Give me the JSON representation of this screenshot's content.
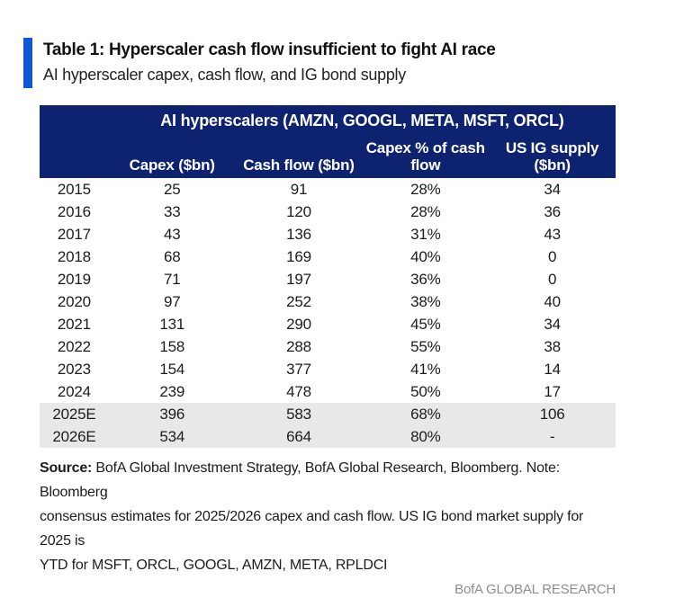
{
  "header": {
    "title": "Table 1: Hyperscaler cash flow insufficient to fight AI race",
    "subtitle": "AI hyperscaler capex, cash flow, and IG bond supply",
    "accent_color": "#1057d5"
  },
  "table": {
    "group_header": "AI hyperscalers (AMZN, GOOGL, META, MSFT, ORCL)",
    "header_bg_color": "#0d2370",
    "estimate_row_bg_color": "#e8e8e8",
    "columns": [
      {
        "key": "year",
        "label": ""
      },
      {
        "key": "capex",
        "label": "Capex ($bn)"
      },
      {
        "key": "cash_flow",
        "label": "Cash flow ($bn)"
      },
      {
        "key": "capex_pct",
        "label": "Capex % of cash flow"
      },
      {
        "key": "us_ig",
        "label": "US IG supply ($bn)"
      }
    ],
    "rows": [
      {
        "year": "2015",
        "capex": "25",
        "cash_flow": "91",
        "capex_pct": "28%",
        "us_ig": "34",
        "highlight": false
      },
      {
        "year": "2016",
        "capex": "33",
        "cash_flow": "120",
        "capex_pct": "28%",
        "us_ig": "36",
        "highlight": false
      },
      {
        "year": "2017",
        "capex": "43",
        "cash_flow": "136",
        "capex_pct": "31%",
        "us_ig": "43",
        "highlight": false
      },
      {
        "year": "2018",
        "capex": "68",
        "cash_flow": "169",
        "capex_pct": "40%",
        "us_ig": "0",
        "highlight": false
      },
      {
        "year": "2019",
        "capex": "71",
        "cash_flow": "197",
        "capex_pct": "36%",
        "us_ig": "0",
        "highlight": false
      },
      {
        "year": "2020",
        "capex": "97",
        "cash_flow": "252",
        "capex_pct": "38%",
        "us_ig": "40",
        "highlight": false
      },
      {
        "year": "2021",
        "capex": "131",
        "cash_flow": "290",
        "capex_pct": "45%",
        "us_ig": "34",
        "highlight": false
      },
      {
        "year": "2022",
        "capex": "158",
        "cash_flow": "288",
        "capex_pct": "55%",
        "us_ig": "38",
        "highlight": false
      },
      {
        "year": "2023",
        "capex": "154",
        "cash_flow": "377",
        "capex_pct": "41%",
        "us_ig": "14",
        "highlight": false
      },
      {
        "year": "2024",
        "capex": "239",
        "cash_flow": "478",
        "capex_pct": "50%",
        "us_ig": "17",
        "highlight": false
      },
      {
        "year": "2025E",
        "capex": "396",
        "cash_flow": "583",
        "capex_pct": "68%",
        "us_ig": "106",
        "highlight": true
      },
      {
        "year": "2026E",
        "capex": "534",
        "cash_flow": "664",
        "capex_pct": "80%",
        "us_ig": "-",
        "highlight": true
      }
    ]
  },
  "footnote": {
    "source_label": "Source:",
    "line1_rest": " BofA Global Investment Strategy, BofA Global Research, Bloomberg. Note: Bloomberg",
    "line2": "consensus estimates for 2025/2026 capex and cash flow. US IG bond market supply for 2025 is",
    "line3": "YTD for MSFT, ORCL, GOOGL, AMZN, META, RPLDCI"
  },
  "brand": {
    "label": "BofA GLOBAL RESEARCH",
    "color": "#8e8e8e"
  }
}
